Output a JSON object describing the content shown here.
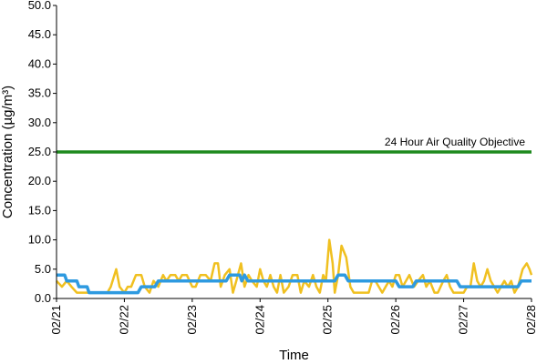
{
  "chart_data": {
    "type": "line",
    "xlabel": "Time",
    "ylabel": "Concentration (µg/m³)",
    "ylim": [
      0,
      50
    ],
    "yticks": [
      "0.0",
      "5.0",
      "10.0",
      "15.0",
      "20.0",
      "25.0",
      "30.0",
      "35.0",
      "40.0",
      "45.0",
      "50.0"
    ],
    "xticks": [
      "02/21",
      "02/22",
      "02/23",
      "02/24",
      "02/25",
      "02/26",
      "02/27",
      "02/28"
    ],
    "xlim": [
      0,
      7
    ],
    "grid": false,
    "reference_line": {
      "label": "24 Hour Air Quality Objective",
      "value": 25,
      "color": "#1e8a1e"
    },
    "series": [
      {
        "color": "#f0c020",
        "points": [
          [
            0.0,
            3
          ],
          [
            0.08,
            2
          ],
          [
            0.15,
            3
          ],
          [
            0.22,
            2
          ],
          [
            0.3,
            1
          ],
          [
            0.45,
            1
          ],
          [
            0.6,
            1
          ],
          [
            0.75,
            1
          ],
          [
            0.8,
            2
          ],
          [
            0.88,
            5
          ],
          [
            0.93,
            2
          ],
          [
            1.0,
            1
          ],
          [
            1.05,
            2
          ],
          [
            1.1,
            2
          ],
          [
            1.17,
            4
          ],
          [
            1.25,
            4
          ],
          [
            1.3,
            2
          ],
          [
            1.37,
            1
          ],
          [
            1.43,
            3
          ],
          [
            1.5,
            2
          ],
          [
            1.57,
            4
          ],
          [
            1.62,
            3
          ],
          [
            1.68,
            4
          ],
          [
            1.75,
            4
          ],
          [
            1.8,
            3
          ],
          [
            1.85,
            4
          ],
          [
            1.92,
            4
          ],
          [
            2.0,
            2
          ],
          [
            2.05,
            2
          ],
          [
            2.12,
            4
          ],
          [
            2.2,
            4
          ],
          [
            2.27,
            3
          ],
          [
            2.33,
            6
          ],
          [
            2.38,
            6
          ],
          [
            2.42,
            2
          ],
          [
            2.48,
            4
          ],
          [
            2.55,
            5
          ],
          [
            2.6,
            1
          ],
          [
            2.65,
            3
          ],
          [
            2.72,
            6
          ],
          [
            2.77,
            2
          ],
          [
            2.83,
            4
          ],
          [
            2.88,
            3
          ],
          [
            2.95,
            2
          ],
          [
            3.0,
            5
          ],
          [
            3.05,
            3
          ],
          [
            3.1,
            2
          ],
          [
            3.15,
            4
          ],
          [
            3.2,
            2
          ],
          [
            3.25,
            1
          ],
          [
            3.3,
            4
          ],
          [
            3.35,
            1
          ],
          [
            3.42,
            2
          ],
          [
            3.48,
            4
          ],
          [
            3.55,
            4
          ],
          [
            3.6,
            1
          ],
          [
            3.65,
            3
          ],
          [
            3.72,
            2
          ],
          [
            3.78,
            4
          ],
          [
            3.83,
            2
          ],
          [
            3.88,
            1
          ],
          [
            3.93,
            4
          ],
          [
            3.97,
            3
          ],
          [
            4.02,
            10
          ],
          [
            4.07,
            6
          ],
          [
            4.1,
            1
          ],
          [
            4.15,
            4
          ],
          [
            4.2,
            9
          ],
          [
            4.27,
            7
          ],
          [
            4.33,
            2
          ],
          [
            4.38,
            1
          ],
          [
            4.5,
            1
          ],
          [
            4.6,
            1
          ],
          [
            4.65,
            3
          ],
          [
            4.7,
            3
          ],
          [
            4.75,
            2
          ],
          [
            4.8,
            1
          ],
          [
            4.85,
            2
          ],
          [
            4.9,
            3
          ],
          [
            4.95,
            2
          ],
          [
            5.0,
            4
          ],
          [
            5.05,
            4
          ],
          [
            5.1,
            2
          ],
          [
            5.15,
            3
          ],
          [
            5.2,
            4
          ],
          [
            5.27,
            2
          ],
          [
            5.33,
            3
          ],
          [
            5.4,
            4
          ],
          [
            5.45,
            2
          ],
          [
            5.5,
            3
          ],
          [
            5.57,
            1
          ],
          [
            5.62,
            1
          ],
          [
            5.7,
            3
          ],
          [
            5.75,
            4
          ],
          [
            5.8,
            2
          ],
          [
            5.85,
            1
          ],
          [
            5.9,
            1
          ],
          [
            6.0,
            1
          ],
          [
            6.05,
            2
          ],
          [
            6.1,
            2
          ],
          [
            6.15,
            6
          ],
          [
            6.2,
            3
          ],
          [
            6.25,
            2
          ],
          [
            6.3,
            3
          ],
          [
            6.35,
            5
          ],
          [
            6.4,
            3
          ],
          [
            6.45,
            2
          ],
          [
            6.5,
            1
          ],
          [
            6.55,
            2
          ],
          [
            6.6,
            3
          ],
          [
            6.65,
            2
          ],
          [
            6.7,
            3
          ],
          [
            6.75,
            1
          ],
          [
            6.8,
            2
          ],
          [
            6.87,
            5
          ],
          [
            6.93,
            6
          ],
          [
            6.97,
            5
          ],
          [
            7.0,
            4
          ]
        ]
      },
      {
        "color": "#2e9ae0",
        "points": [
          [
            0.0,
            4
          ],
          [
            0.12,
            4
          ],
          [
            0.15,
            3
          ],
          [
            0.3,
            3
          ],
          [
            0.33,
            2
          ],
          [
            0.45,
            2
          ],
          [
            0.48,
            1
          ],
          [
            0.9,
            1
          ],
          [
            1.0,
            1
          ],
          [
            1.2,
            1
          ],
          [
            1.25,
            2
          ],
          [
            1.45,
            2
          ],
          [
            1.5,
            3
          ],
          [
            1.75,
            3
          ],
          [
            1.8,
            3
          ],
          [
            2.1,
            3
          ],
          [
            2.15,
            3
          ],
          [
            2.5,
            3
          ],
          [
            2.55,
            4
          ],
          [
            2.7,
            4
          ],
          [
            2.73,
            3
          ],
          [
            2.77,
            4
          ],
          [
            2.82,
            3
          ],
          [
            3.5,
            3
          ],
          [
            4.0,
            3
          ],
          [
            4.1,
            3
          ],
          [
            4.15,
            4
          ],
          [
            4.25,
            4
          ],
          [
            4.3,
            3
          ],
          [
            5.0,
            3
          ],
          [
            5.05,
            2
          ],
          [
            5.25,
            2
          ],
          [
            5.3,
            3
          ],
          [
            5.9,
            3
          ],
          [
            5.95,
            2
          ],
          [
            6.8,
            2
          ],
          [
            6.85,
            3
          ],
          [
            7.0,
            3
          ]
        ]
      }
    ]
  }
}
